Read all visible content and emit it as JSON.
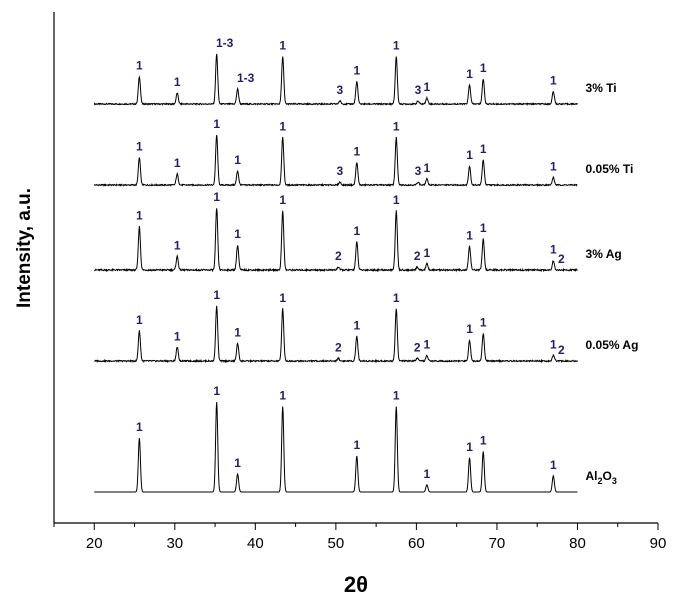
{
  "chart_data": {
    "type": "line",
    "title": "",
    "xlabel": "2θ",
    "ylabel": "Intensity, a.u.",
    "xlim": [
      15,
      90
    ],
    "xticks": [
      "20",
      "30",
      "40",
      "50",
      "60",
      "70",
      "80",
      "90"
    ],
    "grid": false,
    "peak_label_color": "#2b1a63",
    "series": [
      {
        "name": "3% Ti",
        "peaks": [
          {
            "x": 25.6,
            "h": 0.55,
            "label": "1"
          },
          {
            "x": 30.3,
            "h": 0.22,
            "label": "1"
          },
          {
            "x": 35.2,
            "h": 1.0,
            "label": "1-3"
          },
          {
            "x": 37.8,
            "h": 0.3,
            "label": "1-3"
          },
          {
            "x": 43.4,
            "h": 0.95,
            "label": "1"
          },
          {
            "x": 50.5,
            "h": 0.06,
            "label": "3"
          },
          {
            "x": 52.6,
            "h": 0.45,
            "label": "1"
          },
          {
            "x": 57.5,
            "h": 0.95,
            "label": "1"
          },
          {
            "x": 60.2,
            "h": 0.06,
            "label": "3"
          },
          {
            "x": 61.3,
            "h": 0.12,
            "label": "1"
          },
          {
            "x": 66.6,
            "h": 0.38,
            "label": "1"
          },
          {
            "x": 68.3,
            "h": 0.5,
            "label": "1"
          },
          {
            "x": 77.0,
            "h": 0.25,
            "label": "1"
          }
        ]
      },
      {
        "name": "0.05% Ti",
        "peaks": [
          {
            "x": 25.6,
            "h": 0.55,
            "label": "1"
          },
          {
            "x": 30.3,
            "h": 0.22,
            "label": "1"
          },
          {
            "x": 35.2,
            "h": 1.0,
            "label": "1"
          },
          {
            "x": 37.8,
            "h": 0.28,
            "label": "1"
          },
          {
            "x": 43.4,
            "h": 0.95,
            "label": "1"
          },
          {
            "x": 50.5,
            "h": 0.06,
            "label": "3"
          },
          {
            "x": 52.6,
            "h": 0.45,
            "label": "1"
          },
          {
            "x": 57.5,
            "h": 0.95,
            "label": "1"
          },
          {
            "x": 60.2,
            "h": 0.06,
            "label": "3"
          },
          {
            "x": 61.3,
            "h": 0.12,
            "label": "1"
          },
          {
            "x": 66.6,
            "h": 0.38,
            "label": "1"
          },
          {
            "x": 68.3,
            "h": 0.5,
            "label": "1"
          },
          {
            "x": 77.0,
            "h": 0.15,
            "label": "1"
          }
        ]
      },
      {
        "name": "3% Ag",
        "peaks": [
          {
            "x": 25.6,
            "h": 0.7,
            "label": "1"
          },
          {
            "x": 30.3,
            "h": 0.22,
            "label": "1"
          },
          {
            "x": 35.2,
            "h": 1.0,
            "label": "1"
          },
          {
            "x": 37.8,
            "h": 0.4,
            "label": "1"
          },
          {
            "x": 43.4,
            "h": 0.95,
            "label": "1"
          },
          {
            "x": 50.3,
            "h": 0.05,
            "label": "2"
          },
          {
            "x": 52.6,
            "h": 0.45,
            "label": "1"
          },
          {
            "x": 57.5,
            "h": 0.95,
            "label": "1"
          },
          {
            "x": 60.1,
            "h": 0.05,
            "label": "2"
          },
          {
            "x": 61.3,
            "h": 0.1,
            "label": "1"
          },
          {
            "x": 66.6,
            "h": 0.38,
            "label": "1"
          },
          {
            "x": 68.3,
            "h": 0.5,
            "label": "1"
          },
          {
            "x": 77.0,
            "h": 0.15,
            "label": "1"
          },
          {
            "x": 78.0,
            "h": 0.0,
            "label": "2"
          }
        ]
      },
      {
        "name": "0.05% Ag",
        "peaks": [
          {
            "x": 25.6,
            "h": 0.55,
            "label": "1"
          },
          {
            "x": 30.3,
            "h": 0.25,
            "label": "1"
          },
          {
            "x": 35.2,
            "h": 1.0,
            "label": "1"
          },
          {
            "x": 37.8,
            "h": 0.32,
            "label": "1"
          },
          {
            "x": 43.4,
            "h": 0.95,
            "label": "1"
          },
          {
            "x": 50.3,
            "h": 0.05,
            "label": "2"
          },
          {
            "x": 52.6,
            "h": 0.45,
            "label": "1"
          },
          {
            "x": 57.5,
            "h": 0.95,
            "label": "1"
          },
          {
            "x": 60.1,
            "h": 0.05,
            "label": "2"
          },
          {
            "x": 61.3,
            "h": 0.1,
            "label": "1"
          },
          {
            "x": 66.6,
            "h": 0.38,
            "label": "1"
          },
          {
            "x": 68.3,
            "h": 0.5,
            "label": "1"
          },
          {
            "x": 77.0,
            "h": 0.1,
            "label": "1"
          },
          {
            "x": 78.0,
            "h": 0.0,
            "label": "2"
          }
        ]
      },
      {
        "name": "Al2O3",
        "peaks": [
          {
            "x": 25.6,
            "h": 0.6,
            "label": "1"
          },
          {
            "x": 35.2,
            "h": 1.0,
            "label": "1"
          },
          {
            "x": 37.8,
            "h": 0.2,
            "label": "1"
          },
          {
            "x": 43.4,
            "h": 0.95,
            "label": "1"
          },
          {
            "x": 52.6,
            "h": 0.4,
            "label": "1"
          },
          {
            "x": 57.5,
            "h": 0.95,
            "label": "1"
          },
          {
            "x": 61.3,
            "h": 0.08,
            "label": "1"
          },
          {
            "x": 66.6,
            "h": 0.38,
            "label": "1"
          },
          {
            "x": 68.3,
            "h": 0.45,
            "label": "1"
          },
          {
            "x": 77.0,
            "h": 0.18,
            "label": "1"
          }
        ]
      }
    ]
  }
}
